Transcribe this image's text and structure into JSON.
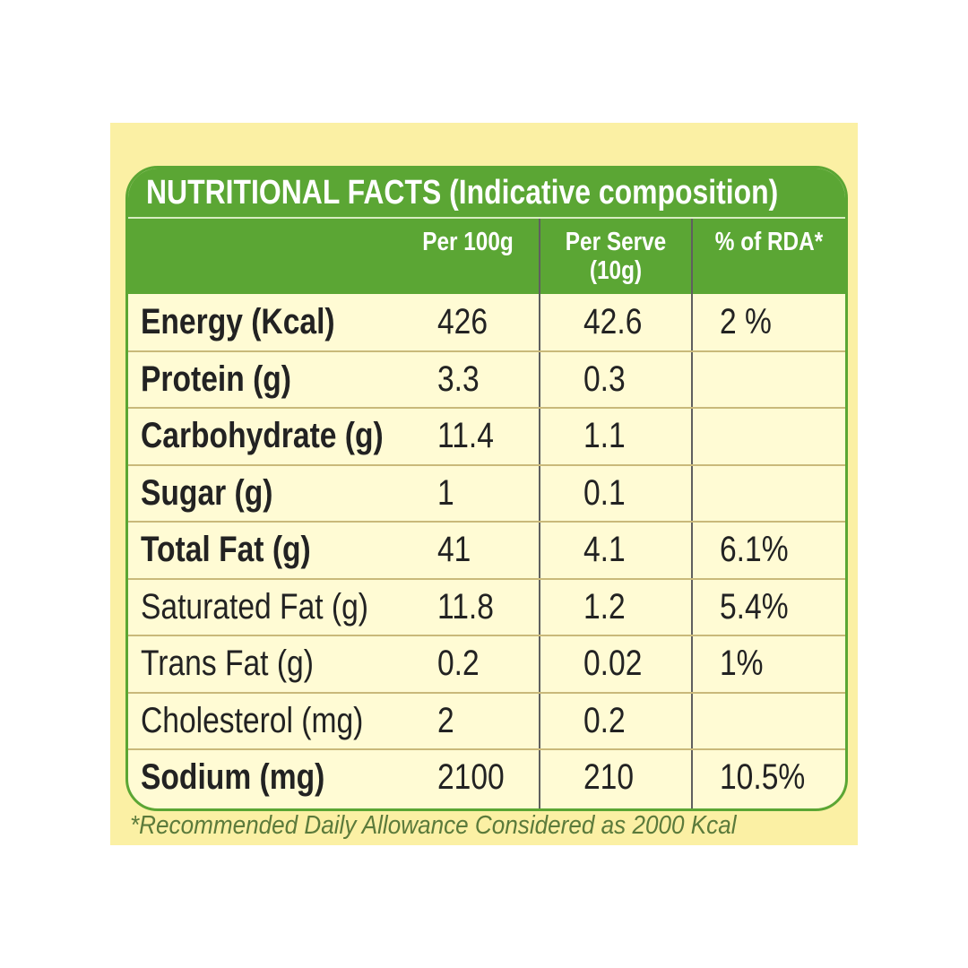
{
  "header": {
    "title": "NUTRITIONAL FACTS (Indicative composition)"
  },
  "table": {
    "columns": [
      "Per 100g",
      "Per Serve (10g)",
      "% of RDA*"
    ],
    "rows": [
      {
        "label": "Energy (Kcal)",
        "per_100g": "426",
        "per_serve": "42.6",
        "rda": "2 %",
        "bold": true
      },
      {
        "label": "Protein (g)",
        "per_100g": "3.3",
        "per_serve": "0.3",
        "rda": null,
        "bold": true
      },
      {
        "label": "Carbohydrate (g)",
        "per_100g": "11.4",
        "per_serve": "1.1",
        "rda": null,
        "bold": true
      },
      {
        "label": "Sugar (g)",
        "per_100g": "1",
        "per_serve": "0.1",
        "rda": null,
        "bold": true
      },
      {
        "label": "Total Fat (g)",
        "per_100g": "41",
        "per_serve": "4.1",
        "rda": "6.1%",
        "bold": true
      },
      {
        "label": "Saturated Fat (g)",
        "per_100g": "11.8",
        "per_serve": "1.2",
        "rda": "5.4%",
        "bold": false
      },
      {
        "label": "Trans Fat (g)",
        "per_100g": "0.2",
        "per_serve": "0.02",
        "rda": "1%",
        "bold": false
      },
      {
        "label": "Cholesterol (mg)",
        "per_100g": "2",
        "per_serve": "0.2",
        "rda": null,
        "bold": false
      },
      {
        "label": "Sodium (mg)",
        "per_100g": "2100",
        "per_serve": "210",
        "rda": "10.5%",
        "bold": true
      }
    ]
  },
  "footnote": "*Recommended Daily Allowance Considered as 2000 Kcal"
}
